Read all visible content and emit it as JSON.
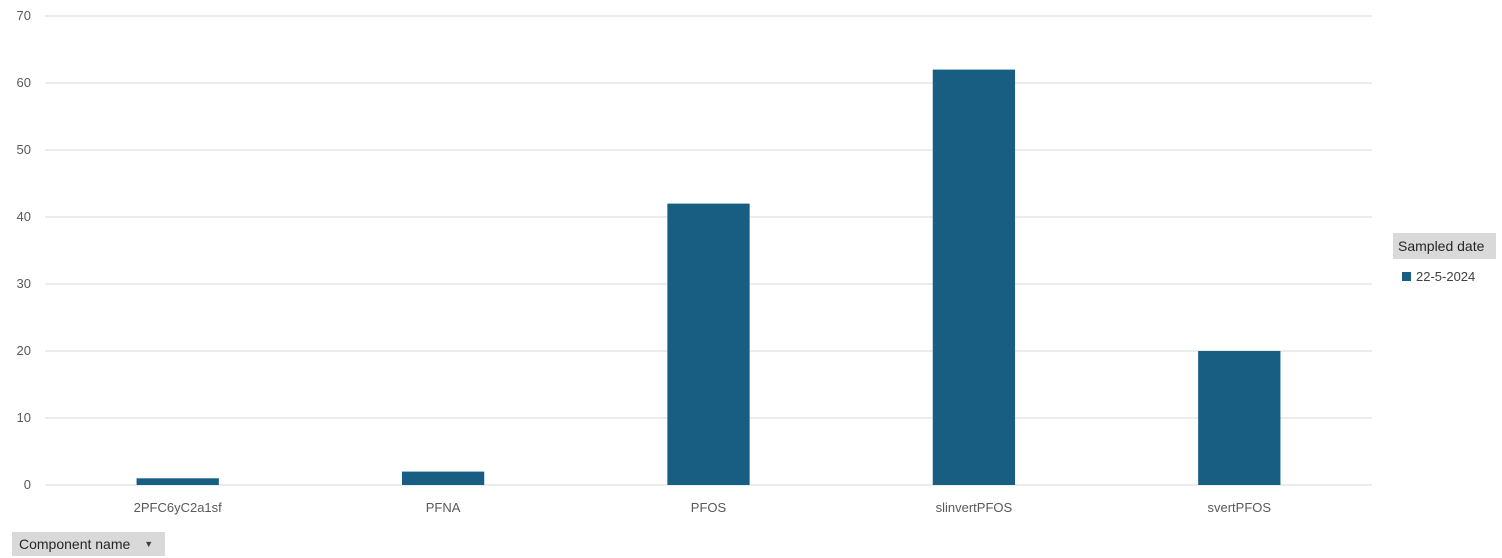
{
  "chart_data": {
    "type": "bar",
    "categories": [
      "2PFC6yC2a1sf",
      "PFNA",
      "PFOS",
      "slinvertPFOS",
      "svertPFOS"
    ],
    "series": [
      {
        "name": "22-5-2024",
        "values": [
          1,
          2,
          42,
          62,
          20
        ],
        "color": "#175e82"
      }
    ],
    "ylim": [
      0,
      70
    ],
    "yticks": [
      0,
      10,
      20,
      30,
      40,
      50,
      60,
      70
    ],
    "grid": true,
    "legend": "right"
  },
  "legend": {
    "title": "Sampled date",
    "items": [
      {
        "label": "22-5-2024",
        "color": "#175e82"
      }
    ]
  },
  "field_button": {
    "label": "Component name",
    "icon": "dropdown-arrow-icon"
  }
}
